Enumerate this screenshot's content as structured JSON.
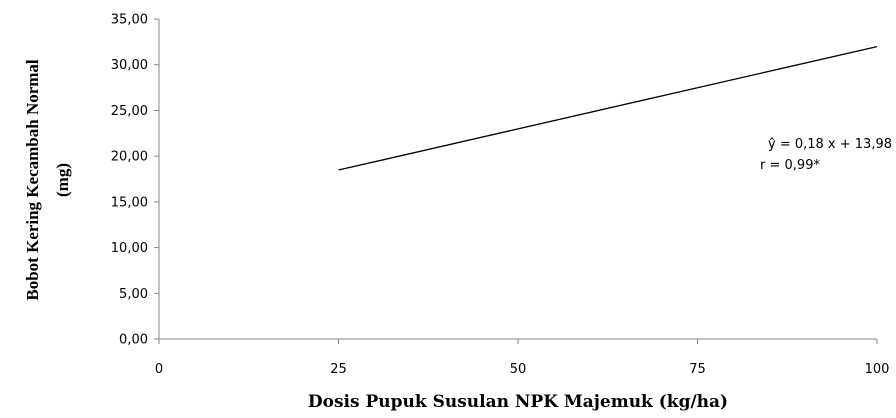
{
  "chart_data": {
    "type": "line",
    "title": "",
    "xlabel": "Dosis Pupuk Susulan NPK Majemuk (kg/ha)",
    "ylabel_lines": [
      "Bobot Kering Kecambah Normal",
      "(mg)"
    ],
    "xlim": [
      0,
      100
    ],
    "ylim": [
      0,
      35
    ],
    "x_ticks": [
      0,
      25,
      50,
      75,
      100
    ],
    "x_tick_labels": [
      "0",
      "25",
      "50",
      "75",
      "100"
    ],
    "y_ticks": [
      0,
      5,
      10,
      15,
      20,
      25,
      30,
      35
    ],
    "y_tick_labels": [
      "0,00",
      "5,00",
      "10,00",
      "15,00",
      "20,00",
      "25,00",
      "30,00",
      "35,00"
    ],
    "grid": false,
    "legend": "none",
    "series": [
      {
        "x": [
          25,
          100
        ],
        "y": [
          18.48,
          31.98
        ],
        "color": "#000000"
      }
    ],
    "annotations": {
      "equation": "ŷ = 0,18  x + 13,98",
      "r_value": "r = 0,99*"
    }
  }
}
